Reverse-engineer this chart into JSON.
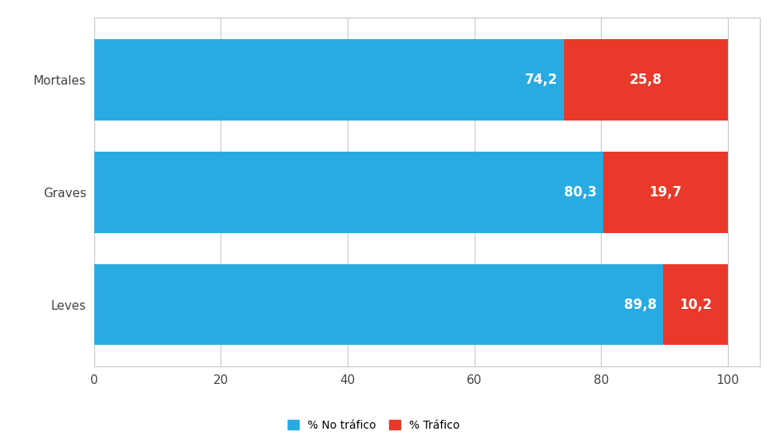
{
  "categories": [
    "Leves",
    "Graves",
    "Mortales"
  ],
  "no_trafico": [
    89.8,
    80.3,
    74.2
  ],
  "trafico": [
    10.2,
    19.7,
    25.8
  ],
  "color_no_trafico": "#29ABE2",
  "color_trafico": "#E8392A",
  "label_no_trafico": "% No tráfico",
  "label_trafico": "% Tráfico",
  "xlim": [
    0,
    105
  ],
  "xticks": [
    0,
    20,
    40,
    60,
    80,
    100
  ],
  "bar_height": 0.72,
  "text_color": "#FFFFFF",
  "text_fontsize": 12,
  "legend_fontsize": 10,
  "tick_fontsize": 11,
  "background_color": "#FFFFFF",
  "grid_color": "#C8C8C8",
  "border_color": "#C8C8C8"
}
